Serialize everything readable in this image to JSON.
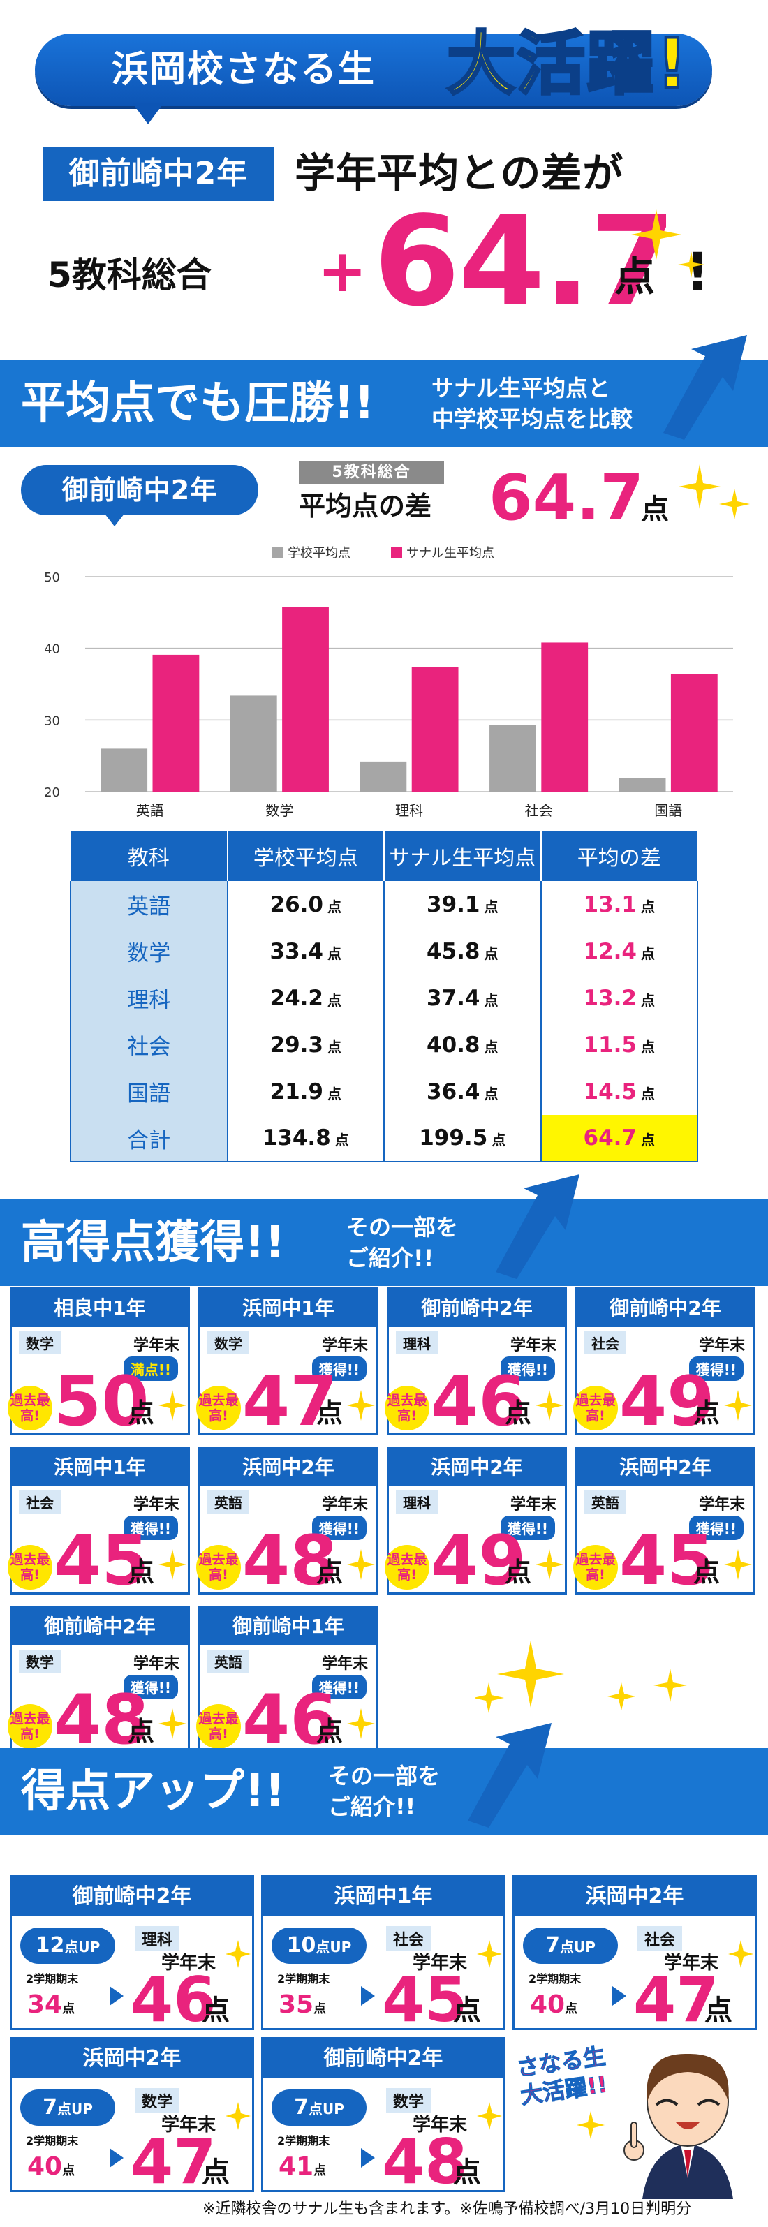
{
  "hero": {
    "title_part1": "浜岡校さなる生",
    "title_part2": "大活躍!"
  },
  "headline": {
    "school": "御前崎中2年",
    "text": "学年平均との差が",
    "subjects": "5教科総合",
    "plus": "+",
    "value": "64.7",
    "unit": "点",
    "excl": "!"
  },
  "section1": {
    "title": "平均点でも圧勝!!",
    "sub1": "サナル生平均点と",
    "sub2": "中学校平均点を比較"
  },
  "comparison": {
    "school": "御前崎中2年",
    "chip": "5教科総合",
    "label": "平均点の差",
    "value": "64.7",
    "unit": "点"
  },
  "chart_data": {
    "type": "bar",
    "categories": [
      "英語",
      "数学",
      "理科",
      "社会",
      "国語"
    ],
    "series": [
      {
        "name": "学校平均点",
        "values": [
          26.0,
          33.4,
          24.2,
          29.3,
          21.9
        ],
        "color": "#a6a6a6"
      },
      {
        "name": "サナル生平均点",
        "values": [
          39.1,
          45.8,
          37.4,
          40.8,
          36.4
        ],
        "color": "#e9237d"
      }
    ],
    "ylim": [
      20,
      50
    ],
    "yticks": [
      20,
      30,
      40,
      50
    ],
    "grid": true,
    "legend": "top"
  },
  "table": {
    "headers": [
      "教科",
      "学校平均点",
      "サナル生平均点",
      "平均の差"
    ],
    "unit": "点",
    "rows": [
      {
        "subject": "英語",
        "school": "26.0",
        "sanaru": "39.1",
        "diff": "13.1"
      },
      {
        "subject": "数学",
        "school": "33.4",
        "sanaru": "45.8",
        "diff": "12.4"
      },
      {
        "subject": "理科",
        "school": "24.2",
        "sanaru": "37.4",
        "diff": "13.2"
      },
      {
        "subject": "社会",
        "school": "29.3",
        "sanaru": "40.8",
        "diff": "11.5"
      },
      {
        "subject": "国語",
        "school": "21.9",
        "sanaru": "36.4",
        "diff": "14.5"
      },
      {
        "subject": "合計",
        "school": "134.8",
        "sanaru": "199.5",
        "diff": "64.7"
      }
    ]
  },
  "section2": {
    "title": "高得点獲得!!",
    "sub1": "その一部を",
    "sub2": "ご紹介!!"
  },
  "high_scores": [
    {
      "school": "相良中1年",
      "subject": "数学",
      "when": "学年末",
      "badge": "満点!!",
      "record": "過去最高!",
      "score": "50",
      "unit": "点"
    },
    {
      "school": "浜岡中1年",
      "subject": "数学",
      "when": "学年末",
      "badge": "獲得!!",
      "record": "過去最高!",
      "score": "47",
      "unit": "点"
    },
    {
      "school": "御前崎中2年",
      "subject": "理科",
      "when": "学年末",
      "badge": "獲得!!",
      "record": "過去最高!",
      "score": "46",
      "unit": "点"
    },
    {
      "school": "御前崎中2年",
      "subject": "社会",
      "when": "学年末",
      "badge": "獲得!!",
      "record": "過去最高!",
      "score": "49",
      "unit": "点"
    },
    {
      "school": "浜岡中1年",
      "subject": "社会",
      "when": "学年末",
      "badge": "獲得!!",
      "record": "過去最高!",
      "score": "45",
      "unit": "点"
    },
    {
      "school": "浜岡中2年",
      "subject": "英語",
      "when": "学年末",
      "badge": "獲得!!",
      "record": "過去最高!",
      "score": "48",
      "unit": "点"
    },
    {
      "school": "浜岡中2年",
      "subject": "理科",
      "when": "学年末",
      "badge": "獲得!!",
      "record": "過去最高!",
      "score": "49",
      "unit": "点"
    },
    {
      "school": "浜岡中2年",
      "subject": "英語",
      "when": "学年末",
      "badge": "獲得!!",
      "record": "過去最高!",
      "score": "45",
      "unit": "点"
    },
    {
      "school": "御前崎中2年",
      "subject": "数学",
      "when": "学年末",
      "badge": "獲得!!",
      "record": "過去最高!",
      "score": "48",
      "unit": "点"
    },
    {
      "school": "御前崎中1年",
      "subject": "英語",
      "when": "学年末",
      "badge": "獲得!!",
      "record": "過去最高!",
      "score": "46",
      "unit": "点"
    }
  ],
  "section3": {
    "title": "得点アップ!!",
    "sub1": "その一部を",
    "sub2": "ご紹介!!"
  },
  "score_ups": [
    {
      "school": "御前崎中2年",
      "up": "12",
      "up_unit": "点UP",
      "subject": "理科",
      "when": "学年末",
      "prev_label": "2学期期末",
      "prev": "34",
      "score": "46",
      "unit": "点"
    },
    {
      "school": "浜岡中1年",
      "up": "10",
      "up_unit": "点UP",
      "subject": "社会",
      "when": "学年末",
      "prev_label": "2学期期末",
      "prev": "35",
      "score": "45",
      "unit": "点"
    },
    {
      "school": "浜岡中2年",
      "up": "7",
      "up_unit": "点UP",
      "subject": "社会",
      "when": "学年末",
      "prev_label": "2学期期末",
      "prev": "40",
      "score": "47",
      "unit": "点"
    },
    {
      "school": "浜岡中2年",
      "up": "7",
      "up_unit": "点UP",
      "subject": "数学",
      "when": "学年末",
      "prev_label": "2学期期末",
      "prev": "40",
      "score": "47",
      "unit": "点"
    },
    {
      "school": "御前崎中2年",
      "up": "7",
      "up_unit": "点UP",
      "subject": "数学",
      "when": "学年末",
      "prev_label": "2学期期末",
      "prev": "41",
      "score": "48",
      "unit": "点"
    }
  ],
  "mascot": {
    "line1": "さなる生",
    "line2": "大活躍!!"
  },
  "footnote": "※近隣校舎のサナル生も含まれます。※佐鳴予備校調べ/3月10日判明分"
}
